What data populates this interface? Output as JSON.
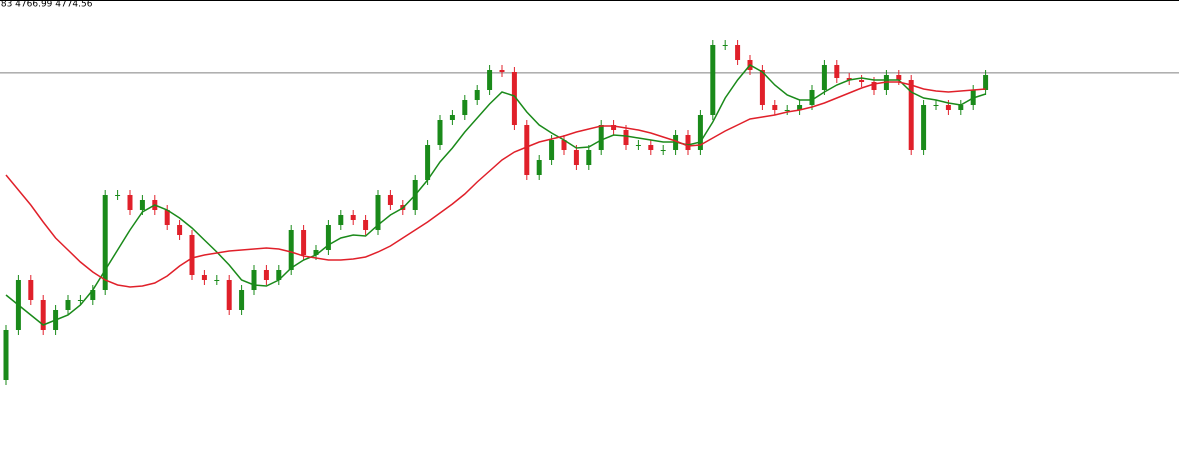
{
  "chart_data": {
    "type": "candlestick",
    "info_text": ".83 4766.99 4774.56",
    "price_line": 4774.56,
    "price_line_color": "#808080",
    "ylim": [
      4577.5,
      4811
    ],
    "up_color": "#1a8a1a",
    "down_color": "#e0202a",
    "categories": [
      null,
      null,
      null,
      null,
      null,
      null,
      null,
      null,
      null,
      null,
      null,
      null,
      null,
      null,
      null,
      null,
      null,
      null,
      null,
      null,
      null,
      null,
      null,
      null,
      null,
      null,
      null,
      null,
      null,
      null,
      null,
      null,
      null,
      null,
      null,
      null,
      null,
      null,
      null,
      null,
      null,
      null,
      null,
      null,
      null,
      null,
      null,
      null,
      null,
      null,
      null,
      null,
      null,
      null,
      null,
      null,
      null,
      null,
      null,
      null,
      null,
      null,
      null,
      null,
      null,
      null,
      null,
      null,
      null,
      null,
      null,
      null,
      null,
      null,
      null,
      null,
      null,
      null,
      null,
      null
    ],
    "open": [
      4621,
      4646,
      4671,
      4661,
      4646,
      4656,
      4661,
      4661,
      4666,
      4713.5,
      4713.5,
      4706,
      4711,
      4706,
      4698.5,
      4693.5,
      4673.5,
      4671,
      4671,
      4656,
      4666,
      4676,
      4671,
      4676,
      4696,
      4683.5,
      4686,
      4698.5,
      4703.5,
      4701,
      4696,
      4713.5,
      4708.5,
      4706,
      4721,
      4738.5,
      4751,
      4753.5,
      4761,
      4766,
      4776,
      4775,
      4748.5,
      4723.5,
      4731,
      4741,
      4736,
      4728.5,
      4736,
      4748.5,
      4746,
      4738.5,
      4738.5,
      4736,
      4736,
      4743.5,
      4736,
      4753.5,
      4788.5,
      4788.5,
      4781,
      4776,
      4758.5,
      4756,
      4756,
      4758.5,
      4766,
      4778.5,
      4772,
      4771,
      4770,
      4766,
      4773.5,
      4771,
      4736,
      4758.5,
      4758.5,
      4756,
      4758.5,
      4766
    ],
    "high": [
      4648.5,
      4673.5,
      4673.5,
      4663.5,
      4658.5,
      4663.5,
      4663.5,
      4668.5,
      4716,
      4716,
      4716,
      4713.5,
      4713.5,
      4708.5,
      4701,
      4696,
      4676,
      4673.5,
      4673.5,
      4668.5,
      4678.5,
      4678.5,
      4678.5,
      4698.5,
      4698.5,
      4688.5,
      4701,
      4706,
      4706,
      4703.5,
      4716,
      4716,
      4711,
      4723.5,
      4741,
      4753.5,
      4756,
      4763.5,
      4768.5,
      4778.5,
      4778.5,
      4777.5,
      4751,
      4733.5,
      4743.5,
      4743.5,
      4738.5,
      4738.5,
      4751,
      4751,
      4748.5,
      4741,
      4741,
      4738.5,
      4746,
      4746,
      4756,
      4791,
      4791,
      4791,
      4783.5,
      4778.5,
      4761,
      4758.5,
      4761,
      4768.5,
      4781,
      4781,
      4774.5,
      4773.5,
      4772.5,
      4776,
      4776,
      4773.5,
      4761,
      4761,
      4761,
      4761,
      4768.5,
      4776
    ],
    "low": [
      4618.5,
      4643.5,
      4658.5,
      4643.5,
      4643.5,
      4653.5,
      4658.5,
      4658.5,
      4663.5,
      4711,
      4703.5,
      4703.5,
      4703.5,
      4696,
      4691,
      4671,
      4668.5,
      4668.5,
      4653.5,
      4653.5,
      4663.5,
      4668.5,
      4668.5,
      4673.5,
      4681,
      4681,
      4683.5,
      4696,
      4698.5,
      4693.5,
      4693.5,
      4706,
      4703.5,
      4703.5,
      4718.5,
      4736,
      4748.5,
      4751,
      4758.5,
      4763.5,
      4772.5,
      4746,
      4721,
      4721,
      4728.5,
      4733.5,
      4726,
      4726,
      4733.5,
      4743.5,
      4736,
      4736,
      4733.5,
      4733.5,
      4733.5,
      4733.5,
      4733.5,
      4751,
      4786,
      4778.5,
      4773.5,
      4756,
      4753.5,
      4753.5,
      4753.5,
      4756,
      4763.5,
      4769.5,
      4768.5,
      4767.5,
      4763.5,
      4763.5,
      4768.5,
      4733.5,
      4733.5,
      4756,
      4753.5,
      4753.5,
      4756,
      4763.5
    ],
    "close": [
      4646,
      4671,
      4661,
      4646,
      4656,
      4661,
      4661,
      4666,
      4713.5,
      4713.5,
      4706,
      4711,
      4706,
      4698.5,
      4693.5,
      4673.5,
      4671,
      4671,
      4656,
      4666,
      4676,
      4671,
      4676,
      4696,
      4683.5,
      4686,
      4698.5,
      4703.5,
      4701,
      4696,
      4713.5,
      4708.5,
      4706,
      4721,
      4738.5,
      4751,
      4753.5,
      4761,
      4766,
      4776,
      4775,
      4748.5,
      4723.5,
      4731,
      4741,
      4736,
      4728.5,
      4736,
      4748.5,
      4746,
      4738.5,
      4738.5,
      4736,
      4736,
      4743.5,
      4736,
      4753.5,
      4788.5,
      4788.5,
      4781,
      4776,
      4758.5,
      4756,
      4756,
      4758.5,
      4766,
      4778.5,
      4772,
      4771,
      4770,
      4766,
      4773.5,
      4771,
      4736,
      4758.5,
      4758.5,
      4756,
      4758.5,
      4766,
      4773.5
    ],
    "ma_lines": [
      {
        "color": "#1a8a1a",
        "values": [
          4663.5,
          4658.5,
          4653.5,
          4648.5,
          4651,
          4653.5,
          4658.5,
          4666,
          4676,
          4686,
          4696,
          4705,
          4708.5,
          4706,
          4702,
          4697,
          4691,
          4685,
          4678.5,
          4671,
          4668.5,
          4668,
          4671,
          4677,
          4681,
          4683.5,
          4688.5,
          4692,
          4693.5,
          4693,
          4698.5,
          4703.5,
          4707,
          4713.5,
          4721,
          4730,
          4737,
          4745,
          4752,
          4759,
          4765,
          4763,
          4755,
          4748.5,
          4744.5,
          4741,
          4737,
          4737.5,
          4741,
          4743.5,
          4743,
          4742,
          4741,
          4740,
          4740,
          4738.5,
          4740,
          4750,
          4762,
          4771,
          4778.5,
          4775,
          4768.5,
          4763.5,
          4761,
          4761,
          4765,
          4768.5,
          4771,
          4772,
          4771,
          4771,
          4771,
          4765,
          4762,
          4761,
          4759.5,
          4758.5,
          4762,
          4764
        ]
      },
      {
        "color": "#e0202a",
        "values": [
          4723.5,
          4716,
          4708.5,
          4700,
          4692,
          4686,
          4680,
          4675,
          4671,
          4668.5,
          4667.5,
          4668,
          4669.5,
          4673,
          4678,
          4682,
          4683.5,
          4684.5,
          4685.5,
          4686,
          4686.5,
          4687,
          4686.5,
          4685,
          4683,
          4682,
          4681,
          4681,
          4681.5,
          4682.5,
          4685,
          4688,
          4692,
          4696,
          4700,
          4704.5,
          4709,
          4714,
          4720,
          4725.5,
          4731,
          4735,
          4737.5,
          4740,
          4741.5,
          4743,
          4745,
          4746.5,
          4748,
          4748,
          4747,
          4746,
          4744.5,
          4742.5,
          4740.5,
          4738,
          4738.5,
          4742,
          4745.5,
          4748.5,
          4751.5,
          4752.5,
          4753.5,
          4755,
          4756,
          4757.5,
          4759.5,
          4762,
          4764.5,
          4767,
          4769,
          4770,
          4770,
          4768.5,
          4766.5,
          4765.5,
          4765,
          4765.5,
          4766,
          4766.5
        ]
      }
    ]
  }
}
